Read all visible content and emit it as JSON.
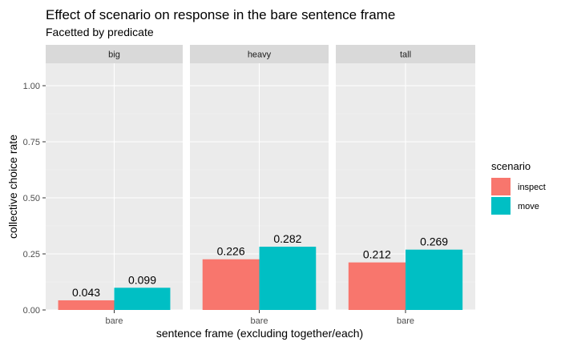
{
  "chart_data": {
    "type": "bar",
    "title": "Effect of scenario on response in the bare sentence frame",
    "subtitle": "Facetted by predicate",
    "xlabel": "sentence frame (excluding together/each)",
    "ylabel": "collective choice rate",
    "ylim": [
      0,
      1.1
    ],
    "yticks": [
      0,
      0.25,
      0.5,
      0.75,
      1.0
    ],
    "ytick_labels": [
      "0.00",
      "0.25",
      "0.50",
      "0.75",
      "1.00"
    ],
    "grid": true,
    "legend": {
      "title": "scenario",
      "placement": "right",
      "entries": [
        {
          "name": "inspect",
          "color": "#F8766D"
        },
        {
          "name": "move",
          "color": "#00BFC4"
        }
      ]
    },
    "categories": [
      "bare"
    ],
    "facets": [
      {
        "label": "big",
        "series": [
          {
            "name": "inspect",
            "values": [
              0.043
            ],
            "labels": [
              "0.043"
            ]
          },
          {
            "name": "move",
            "values": [
              0.099
            ],
            "labels": [
              "0.099"
            ]
          }
        ]
      },
      {
        "label": "heavy",
        "series": [
          {
            "name": "inspect",
            "values": [
              0.226
            ],
            "labels": [
              "0.226"
            ]
          },
          {
            "name": "move",
            "values": [
              0.282
            ],
            "labels": [
              "0.282"
            ]
          }
        ]
      },
      {
        "label": "tall",
        "series": [
          {
            "name": "inspect",
            "values": [
              0.212
            ],
            "labels": [
              "0.212"
            ]
          },
          {
            "name": "move",
            "values": [
              0.269
            ],
            "labels": [
              "0.269"
            ]
          }
        ]
      }
    ]
  }
}
